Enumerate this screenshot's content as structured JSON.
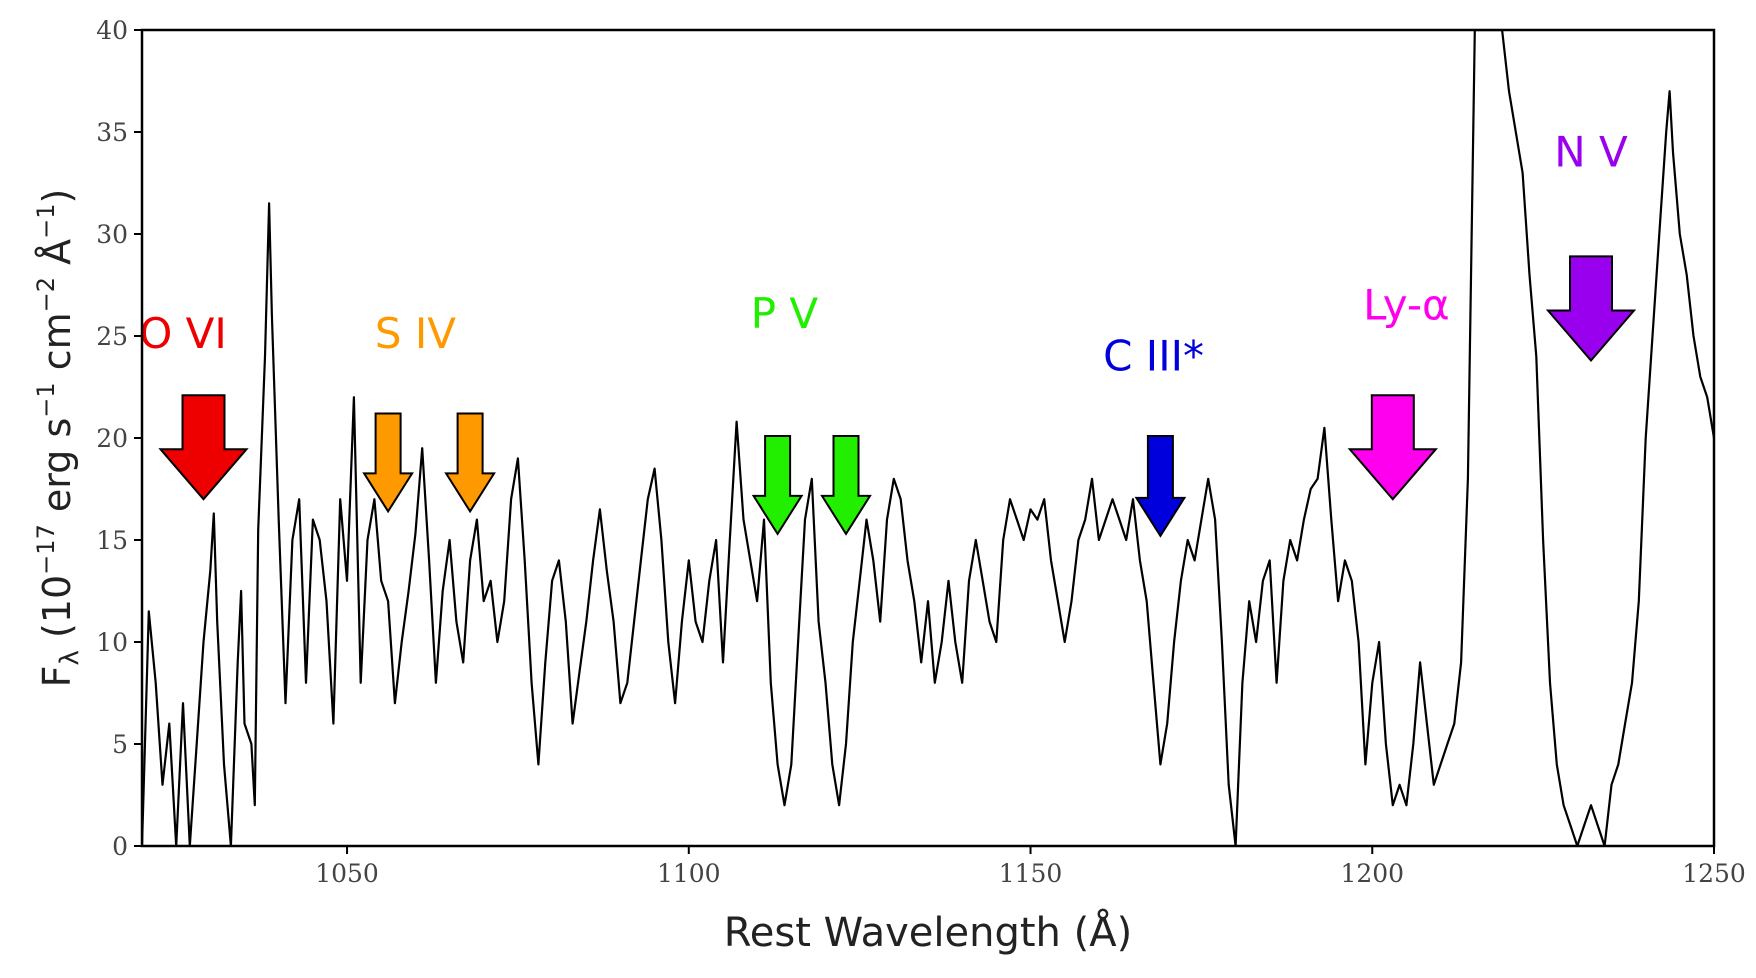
{
  "chart_data": {
    "type": "line",
    "xlabel": "Rest Wavelength (Å)",
    "ylabel": {
      "main": "F",
      "sub": "λ",
      "paren_open": " (10",
      "exp1": "−17",
      "erg": " erg s",
      "exp2": "−1",
      "cm": " cm",
      "exp3": "−2",
      "ang": " Å",
      "exp4": "−1",
      "paren_close": ")"
    },
    "xlim": [
      1020,
      1250
    ],
    "ylim": [
      0,
      40
    ],
    "xticks": [
      1050,
      1100,
      1150,
      1200,
      1250
    ],
    "yticks": [
      0,
      5,
      10,
      15,
      20,
      25,
      30,
      35,
      40
    ],
    "grid": false,
    "series": [
      {
        "color": "#000000",
        "points": [
          [
            1020,
            0
          ],
          [
            1021,
            11.5
          ],
          [
            1022,
            8
          ],
          [
            1023,
            3
          ],
          [
            1024,
            6
          ],
          [
            1025,
            0
          ],
          [
            1026,
            7
          ],
          [
            1027,
            0
          ],
          [
            1028,
            5
          ],
          [
            1029,
            10
          ],
          [
            1030,
            13.5
          ],
          [
            1030.5,
            16.3
          ],
          [
            1031,
            11
          ],
          [
            1032,
            4
          ],
          [
            1033,
            0
          ],
          [
            1034,
            9
          ],
          [
            1034.5,
            12.5
          ],
          [
            1035,
            6
          ],
          [
            1036,
            5
          ],
          [
            1036.5,
            2
          ],
          [
            1037,
            15.5
          ],
          [
            1038,
            24
          ],
          [
            1038.6,
            31.5
          ],
          [
            1039,
            26
          ],
          [
            1040,
            16
          ],
          [
            1041,
            7
          ],
          [
            1042,
            15
          ],
          [
            1043,
            17
          ],
          [
            1044,
            8
          ],
          [
            1045,
            16
          ],
          [
            1046,
            15
          ],
          [
            1047,
            12
          ],
          [
            1048,
            6
          ],
          [
            1049,
            17
          ],
          [
            1050,
            13
          ],
          [
            1051,
            22
          ],
          [
            1052,
            8
          ],
          [
            1053,
            15
          ],
          [
            1054,
            17
          ],
          [
            1055,
            13
          ],
          [
            1056,
            12
          ],
          [
            1057,
            7
          ],
          [
            1058,
            10
          ],
          [
            1059,
            12.5
          ],
          [
            1060,
            15.3
          ],
          [
            1061,
            19.5
          ],
          [
            1062,
            14
          ],
          [
            1063,
            8
          ],
          [
            1064,
            12.5
          ],
          [
            1065,
            15
          ],
          [
            1066,
            11
          ],
          [
            1067,
            9
          ],
          [
            1068,
            14
          ],
          [
            1069,
            16
          ],
          [
            1070,
            12
          ],
          [
            1071,
            13
          ],
          [
            1072,
            10
          ],
          [
            1073,
            12
          ],
          [
            1074,
            17
          ],
          [
            1075,
            19
          ],
          [
            1076,
            14
          ],
          [
            1077,
            8
          ],
          [
            1078,
            4
          ],
          [
            1079,
            9
          ],
          [
            1080,
            13
          ],
          [
            1081,
            14
          ],
          [
            1082,
            11
          ],
          [
            1083,
            6
          ],
          [
            1084,
            8.5
          ],
          [
            1085,
            11
          ],
          [
            1086,
            14
          ],
          [
            1087,
            16.5
          ],
          [
            1088,
            13.5
          ],
          [
            1089,
            11
          ],
          [
            1090,
            7
          ],
          [
            1091,
            8
          ],
          [
            1092,
            11
          ],
          [
            1093,
            14
          ],
          [
            1094,
            17
          ],
          [
            1095,
            18.5
          ],
          [
            1096,
            15
          ],
          [
            1097,
            10
          ],
          [
            1098,
            7
          ],
          [
            1099,
            11
          ],
          [
            1100,
            14
          ],
          [
            1101,
            11
          ],
          [
            1102,
            10
          ],
          [
            1103,
            13
          ],
          [
            1104,
            15
          ],
          [
            1105,
            9
          ],
          [
            1106,
            15
          ],
          [
            1107,
            20.8
          ],
          [
            1108,
            16
          ],
          [
            1109,
            14
          ],
          [
            1110,
            12
          ],
          [
            1111,
            16
          ],
          [
            1112,
            8
          ],
          [
            1113,
            4
          ],
          [
            1114,
            2
          ],
          [
            1115,
            4
          ],
          [
            1116,
            10
          ],
          [
            1117,
            16
          ],
          [
            1118,
            18
          ],
          [
            1119,
            11
          ],
          [
            1120,
            8
          ],
          [
            1121,
            4
          ],
          [
            1122,
            2
          ],
          [
            1123,
            5
          ],
          [
            1124,
            10
          ],
          [
            1125,
            13
          ],
          [
            1126,
            16
          ],
          [
            1127,
            14
          ],
          [
            1128,
            11
          ],
          [
            1129,
            16
          ],
          [
            1130,
            18
          ],
          [
            1131,
            17
          ],
          [
            1132,
            14
          ],
          [
            1133,
            12
          ],
          [
            1134,
            9
          ],
          [
            1135,
            12
          ],
          [
            1136,
            8
          ],
          [
            1137,
            10
          ],
          [
            1138,
            13
          ],
          [
            1139,
            10
          ],
          [
            1140,
            8
          ],
          [
            1141,
            13
          ],
          [
            1142,
            15
          ],
          [
            1143,
            13
          ],
          [
            1144,
            11
          ],
          [
            1145,
            10
          ],
          [
            1146,
            15
          ],
          [
            1147,
            17
          ],
          [
            1148,
            16
          ],
          [
            1149,
            15
          ],
          [
            1150,
            16.5
          ],
          [
            1151,
            16
          ],
          [
            1152,
            17
          ],
          [
            1153,
            14
          ],
          [
            1154,
            12
          ],
          [
            1155,
            10
          ],
          [
            1156,
            12
          ],
          [
            1157,
            15
          ],
          [
            1158,
            16
          ],
          [
            1159,
            18
          ],
          [
            1160,
            15
          ],
          [
            1161,
            16
          ],
          [
            1162,
            17
          ],
          [
            1163,
            16
          ],
          [
            1164,
            15
          ],
          [
            1165,
            17
          ],
          [
            1166,
            14
          ],
          [
            1167,
            12
          ],
          [
            1168,
            8
          ],
          [
            1169,
            4
          ],
          [
            1170,
            6
          ],
          [
            1171,
            10
          ],
          [
            1172,
            13
          ],
          [
            1173,
            15
          ],
          [
            1174,
            14
          ],
          [
            1175,
            16
          ],
          [
            1176,
            18
          ],
          [
            1177,
            16
          ],
          [
            1178,
            10
          ],
          [
            1179,
            3
          ],
          [
            1180,
            0
          ],
          [
            1181,
            8
          ],
          [
            1182,
            12
          ],
          [
            1183,
            10
          ],
          [
            1184,
            13
          ],
          [
            1185,
            14
          ],
          [
            1186,
            8
          ],
          [
            1187,
            13
          ],
          [
            1188,
            15
          ],
          [
            1189,
            14
          ],
          [
            1190,
            16
          ],
          [
            1191,
            17.5
          ],
          [
            1192,
            18
          ],
          [
            1193,
            20.5
          ],
          [
            1194,
            16
          ],
          [
            1195,
            12
          ],
          [
            1196,
            14
          ],
          [
            1197,
            13
          ],
          [
            1198,
            10
          ],
          [
            1199,
            4
          ],
          [
            1200,
            8
          ],
          [
            1201,
            10
          ],
          [
            1202,
            5
          ],
          [
            1203,
            2
          ],
          [
            1204,
            3
          ],
          [
            1205,
            2
          ],
          [
            1206,
            5
          ],
          [
            1207,
            9
          ],
          [
            1208,
            6
          ],
          [
            1209,
            3
          ],
          [
            1210,
            4
          ],
          [
            1211,
            5
          ],
          [
            1212,
            6
          ],
          [
            1213,
            9
          ],
          [
            1214,
            18
          ],
          [
            1215,
            40
          ],
          [
            1216,
            40
          ],
          [
            1218,
            40
          ],
          [
            1219,
            40
          ],
          [
            1220,
            37
          ],
          [
            1221,
            35
          ],
          [
            1222,
            33
          ],
          [
            1223,
            28
          ],
          [
            1224,
            24
          ],
          [
            1225,
            15
          ],
          [
            1226,
            8
          ],
          [
            1227,
            4
          ],
          [
            1228,
            2
          ],
          [
            1229,
            1
          ],
          [
            1230,
            0
          ],
          [
            1231,
            1
          ],
          [
            1232,
            2
          ],
          [
            1233,
            1
          ],
          [
            1234,
            0
          ],
          [
            1235,
            3
          ],
          [
            1236,
            4
          ],
          [
            1237,
            6
          ],
          [
            1238,
            8
          ],
          [
            1239,
            12
          ],
          [
            1240,
            20
          ],
          [
            1241,
            25
          ],
          [
            1242,
            30
          ],
          [
            1243,
            35
          ],
          [
            1243.5,
            37
          ],
          [
            1244,
            34
          ],
          [
            1245,
            30
          ],
          [
            1246,
            28
          ],
          [
            1247,
            25
          ],
          [
            1248,
            23
          ],
          [
            1249,
            22
          ],
          [
            1250,
            20
          ]
        ]
      }
    ],
    "annotations": [
      {
        "label": "O VI",
        "color": "#ee0000",
        "label_x": 1026,
        "label_y": 24.4,
        "arrows": [
          {
            "x": 1029,
            "top": 22.1,
            "tip": 17.0,
            "size": "large"
          }
        ]
      },
      {
        "label": "S IV",
        "color": "#ff9900",
        "label_x": 1060,
        "label_y": 24.4,
        "arrows": [
          {
            "x": 1056,
            "top": 21.2,
            "tip": 16.4,
            "size": "small"
          },
          {
            "x": 1068,
            "top": 21.2,
            "tip": 16.4,
            "size": "small"
          }
        ]
      },
      {
        "label": "P V",
        "color": "#22ee00",
        "label_x": 1114,
        "label_y": 25.4,
        "arrows": [
          {
            "x": 1113,
            "top": 20.1,
            "tip": 15.3,
            "size": "small"
          },
          {
            "x": 1123,
            "top": 20.1,
            "tip": 15.3,
            "size": "small"
          }
        ]
      },
      {
        "label": "C III*",
        "color": "#0000dd",
        "label_x": 1168,
        "label_y": 23.3,
        "arrows": [
          {
            "x": 1169,
            "top": 20.1,
            "tip": 15.2,
            "size": "small"
          }
        ]
      },
      {
        "label": "Ly-α",
        "color": "#ff00ee",
        "label_x": 1205,
        "label_y": 25.8,
        "arrows": [
          {
            "x": 1203,
            "top": 22.1,
            "tip": 17.0,
            "size": "large"
          }
        ]
      },
      {
        "label": "N V",
        "color": "#9900ee",
        "label_x": 1232,
        "label_y": 33.3,
        "arrows": [
          {
            "x": 1232,
            "top": 28.9,
            "tip": 23.8,
            "size": "large"
          }
        ]
      }
    ]
  }
}
